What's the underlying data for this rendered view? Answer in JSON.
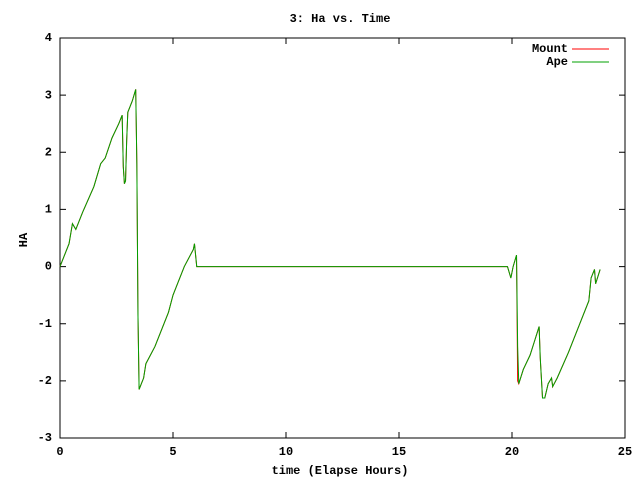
{
  "chart_data": {
    "type": "line",
    "title": "3: Ha vs. Time",
    "xlabel": "time (Elapse Hours)",
    "ylabel": "HA",
    "x": [
      0,
      0.4,
      0.55,
      0.7,
      1.0,
      1.5,
      1.8,
      2.0,
      2.3,
      2.6,
      2.75,
      2.8,
      2.85,
      2.9,
      2.95,
      3.0,
      3.1,
      3.2,
      3.35,
      3.4,
      3.45,
      3.5,
      3.7,
      3.8,
      4.2,
      4.3,
      4.8,
      5.0,
      5.2,
      5.5,
      5.9,
      5.95,
      6.05,
      19.8,
      19.95,
      20.05,
      20.2,
      20.25,
      20.3,
      20.5,
      20.8,
      21.0,
      21.2,
      21.25,
      21.35,
      21.45,
      21.6,
      21.75,
      21.8,
      22.0,
      22.5,
      23.0,
      23.4,
      23.5,
      23.65,
      23.7,
      23.9
    ],
    "series": [
      {
        "name": "Mount",
        "color": "#ff0000",
        "values": [
          0,
          0.4,
          0.75,
          0.65,
          0.95,
          1.4,
          1.8,
          1.9,
          2.25,
          2.5,
          2.65,
          1.75,
          1.45,
          1.5,
          2.2,
          2.7,
          2.8,
          2.9,
          3.1,
          1.8,
          -0.85,
          -2.15,
          -1.95,
          -1.7,
          -1.4,
          -1.3,
          -0.8,
          -0.5,
          -0.3,
          0,
          0.3,
          0.4,
          0,
          0,
          -0.2,
          0,
          0.2,
          -2.0,
          -2.05,
          -1.8,
          -1.55,
          -1.3,
          -1.05,
          -1.6,
          -2.3,
          -2.3,
          -2.05,
          -1.95,
          -2.1,
          -1.95,
          -1.5,
          -1.0,
          -0.6,
          -0.2,
          -0.05,
          -0.3,
          -0.05
        ]
      },
      {
        "name": "Ape",
        "color": "#00a000",
        "values": [
          0,
          0.4,
          0.75,
          0.65,
          0.95,
          1.4,
          1.8,
          1.9,
          2.25,
          2.5,
          2.65,
          1.75,
          1.45,
          1.5,
          2.2,
          2.7,
          2.8,
          2.9,
          3.1,
          1.8,
          -0.85,
          -2.15,
          -1.95,
          -1.7,
          -1.4,
          -1.3,
          -0.8,
          -0.5,
          -0.3,
          0,
          0.3,
          0.4,
          0,
          0,
          -0.2,
          0,
          0.2,
          -1.4,
          -2.05,
          -1.8,
          -1.55,
          -1.3,
          -1.05,
          -1.6,
          -2.3,
          -2.3,
          -2.05,
          -1.95,
          -2.1,
          -1.95,
          -1.5,
          -1.0,
          -0.6,
          -0.2,
          -0.05,
          -0.3,
          -0.05
        ]
      }
    ],
    "xlim": [
      0,
      25
    ],
    "xticks": [
      0,
      5,
      10,
      15,
      20,
      25
    ],
    "ylim": [
      -3,
      4
    ],
    "yticks": [
      -3,
      -2,
      -1,
      0,
      1,
      2,
      3,
      4
    ],
    "grid": false,
    "legend": "upper-right"
  }
}
